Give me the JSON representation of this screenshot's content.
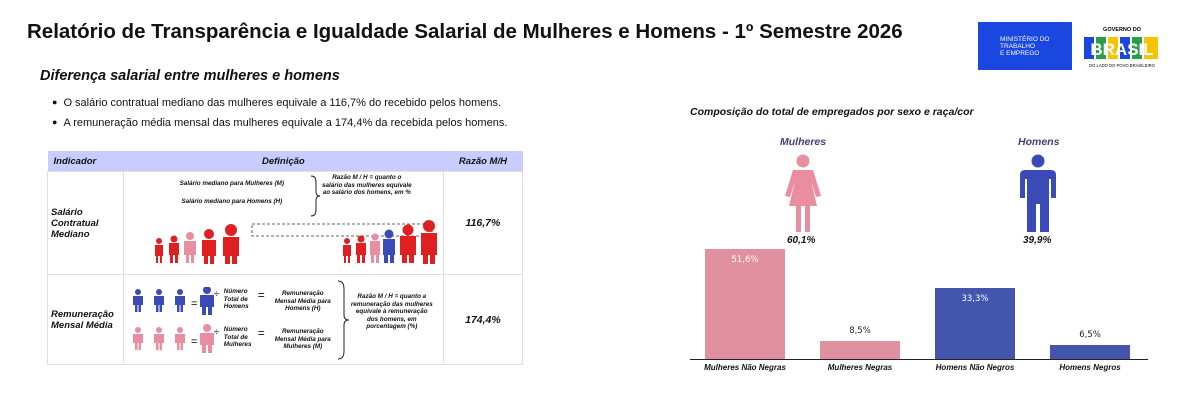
{
  "header": {
    "title": "Relatório de Transparência e Igualdade Salarial de Mulheres e Homens - 1º Semestre 2026",
    "logo_mte_lines": [
      "Ministério do",
      "Trabalho",
      "e Emprego"
    ],
    "logo_gov_top": "GOVERNO DO",
    "logo_gov_word": "BRASIL",
    "logo_gov_bottom": "DO LADO DO POVO BRASILEIRO"
  },
  "left": {
    "subtitle": "Diferença salarial entre mulheres e homens",
    "bullets": [
      "O salário contratual mediano das mulheres equivale a 116,7% do recebido pelos homens.",
      "A remuneração média mensal das mulheres equivale a 174,4% da recebida pelos homens."
    ],
    "table": {
      "headers": [
        "Indicador",
        "Definição",
        "Razão M/H"
      ],
      "rows": [
        {
          "indicator": "Salário Contratual Mediano",
          "def_m": "Salário mediano para Mulheres (M)",
          "def_h": "Salário mediano para Homens (H)",
          "def_note": "Razão M / H = quanto o salário das mulheres equivale ao salário dos homens, em %",
          "ratio": "116,7%"
        },
        {
          "indicator": "Remuneração Mensal Média",
          "num_label_h": "Número Total de Homens",
          "rem_label_h": "Remuneração Mensal Média para Homens (H)",
          "num_label_m": "Número Total de Mulheres",
          "rem_label_m": "Remuneração Mensal Média para Mulheres (M)",
          "def_note": "Razão M / H = quanto a remuneração das mulheres equivale à remuneração dos homens, em porcentagem (%)",
          "ratio": "174,4%"
        }
      ]
    }
  },
  "right": {
    "title": "Composição do total de empregados por sexo e raça/cor",
    "women_label": "Mulheres",
    "men_label": "Homens",
    "women_pct": "60,1%",
    "men_pct": "39,9%",
    "colors": {
      "women": "#e88ea0",
      "men": "#3a4bb8",
      "women_bar": "#e0909e",
      "men_bar": "#4455ad"
    }
  },
  "chart_data": {
    "type": "bar",
    "title": "Composição do total de empregados por sexo e raça/cor",
    "categories": [
      "Mulheres Não Negras",
      "Mulheres Negras",
      "Homens Não Negros",
      "Homens Negros"
    ],
    "values": [
      51.6,
      8.5,
      33.3,
      6.5
    ],
    "value_labels": [
      "51,6%",
      "8,5%",
      "33,3%",
      "6,5%"
    ],
    "xlabel": "",
    "ylabel": "",
    "ylim": [
      0,
      55
    ],
    "grid": false
  }
}
